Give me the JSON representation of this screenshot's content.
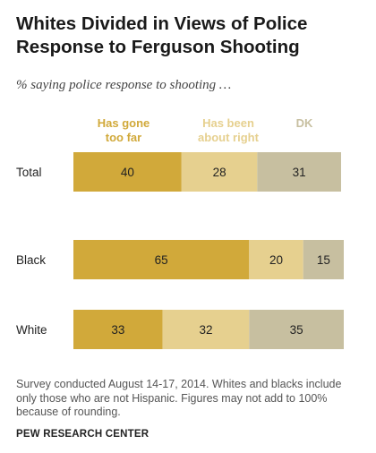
{
  "title_lines": [
    "Whites Divided in Views of Police",
    "Response to Ferguson Shooting"
  ],
  "subtitle": "% saying police response to shooting …",
  "legend": [
    {
      "lines": [
        "Has gone",
        "too far"
      ],
      "color": "#d1a93a"
    },
    {
      "lines": [
        "Has been",
        "about right"
      ],
      "color": "#e6d08f"
    },
    {
      "lines": [
        "DK",
        ""
      ],
      "color": "#c7bfa0"
    }
  ],
  "chart_data": {
    "type": "bar",
    "orientation": "horizontal",
    "stacked": true,
    "categories": [
      "Total",
      "Black",
      "White"
    ],
    "series": [
      {
        "name": "Has gone too far",
        "values": [
          40,
          65,
          33
        ],
        "color": "#d1a93a"
      },
      {
        "name": "Has been about right",
        "values": [
          28,
          20,
          32
        ],
        "color": "#e6d08f"
      },
      {
        "name": "DK",
        "values": [
          31,
          15,
          35
        ],
        "color": "#c7bfa0"
      }
    ],
    "xlim": [
      0,
      100
    ],
    "grid": false
  },
  "note_lines": [
    "Survey conducted August 14-17, 2014. Whites and blacks include",
    "only those who are not Hispanic. Figures may not add to 100%",
    "because of rounding."
  ],
  "source": "PEW RESEARCH CENTER"
}
